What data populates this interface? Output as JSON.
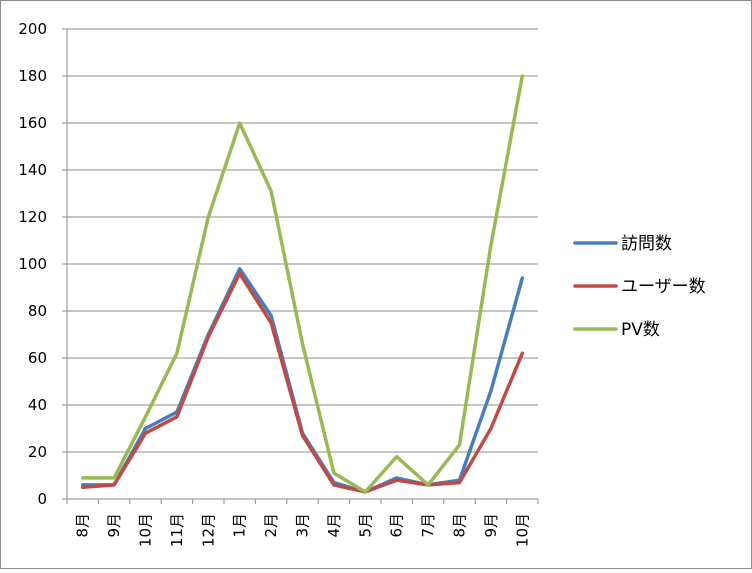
{
  "chart_data": {
    "type": "line",
    "categories": [
      "8月",
      "9月",
      "10月",
      "11月",
      "12月",
      "1月",
      "2月",
      "3月",
      "4月",
      "5月",
      "6月",
      "7月",
      "8月",
      "9月",
      "10月"
    ],
    "series": [
      {
        "name": "訪問数",
        "color": "#4a7ebb",
        "values": [
          6,
          6,
          30,
          37,
          70,
          98,
          78,
          28,
          7,
          3,
          9,
          6,
          8,
          46,
          94
        ]
      },
      {
        "name": "ユーザー数",
        "color": "#be4b48",
        "values": [
          5,
          6,
          28,
          35,
          69,
          96,
          75,
          27,
          6,
          3,
          8,
          6,
          7,
          30,
          62
        ]
      },
      {
        "name": "PV数",
        "color": "#98b954",
        "values": [
          9,
          9,
          35,
          62,
          120,
          160,
          131,
          66,
          11,
          3,
          18,
          6,
          23,
          108,
          180
        ]
      }
    ],
    "y_ticks": [
      "0",
      "20",
      "40",
      "60",
      "80",
      "100",
      "120",
      "140",
      "160",
      "180",
      "200"
    ],
    "ylim": [
      0,
      200
    ],
    "grid": true,
    "legend_position": "right"
  }
}
